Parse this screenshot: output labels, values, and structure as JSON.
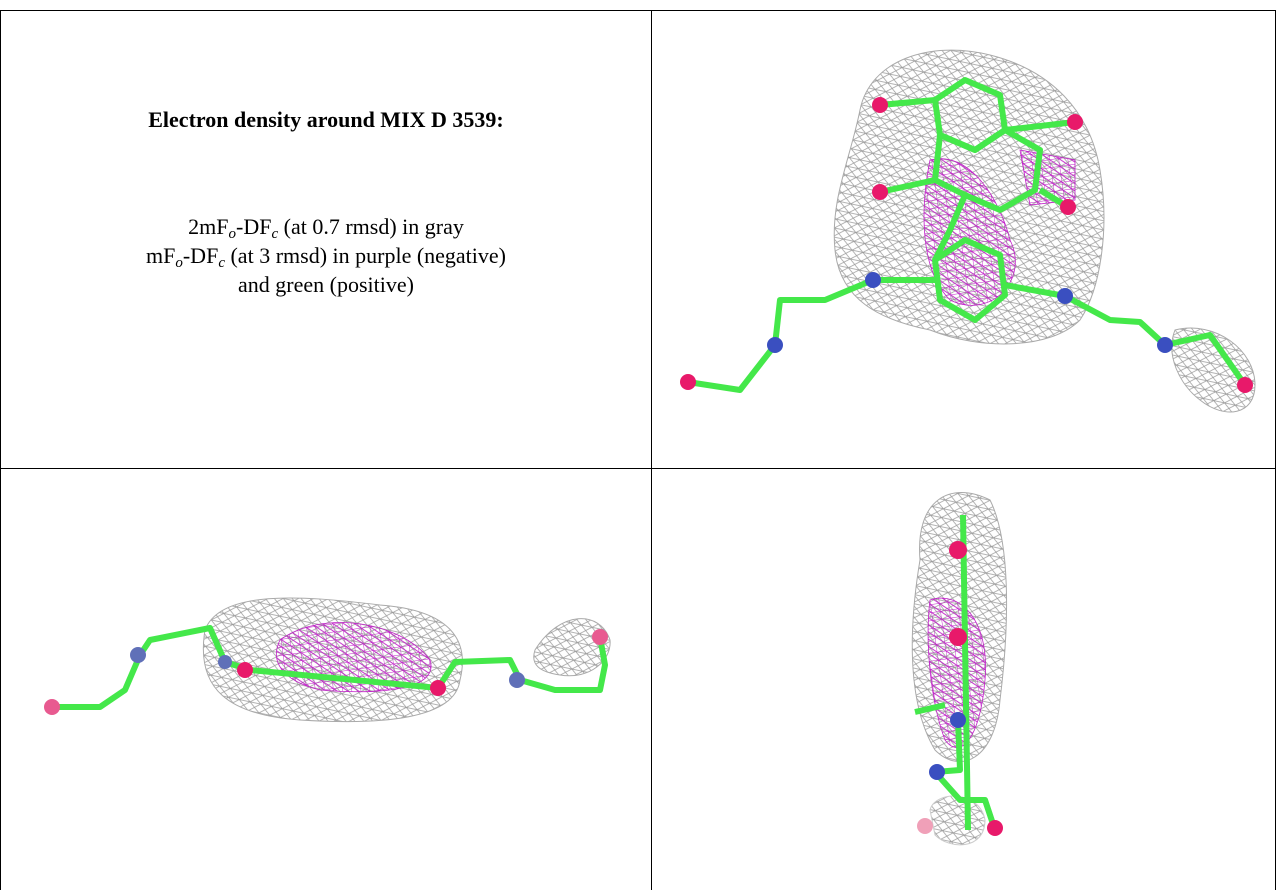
{
  "caption": {
    "heading": "Electron density around MIX D 3539:",
    "lines": [
      [
        {
          "text": "2mF"
        },
        {
          "subscript": "o"
        },
        {
          "text": "-DF"
        },
        {
          "subscript": "c"
        },
        {
          "text": " (at 0.7 rmsd) in gray"
        }
      ],
      [
        {
          "text": "mF"
        },
        {
          "subscript": "o"
        },
        {
          "text": "-DF"
        },
        {
          "subscript": "c"
        },
        {
          "text": " (at 3 rmsd) in purple (negative)"
        }
      ],
      [
        {
          "text": "and green (positive)"
        }
      ]
    ]
  }
}
